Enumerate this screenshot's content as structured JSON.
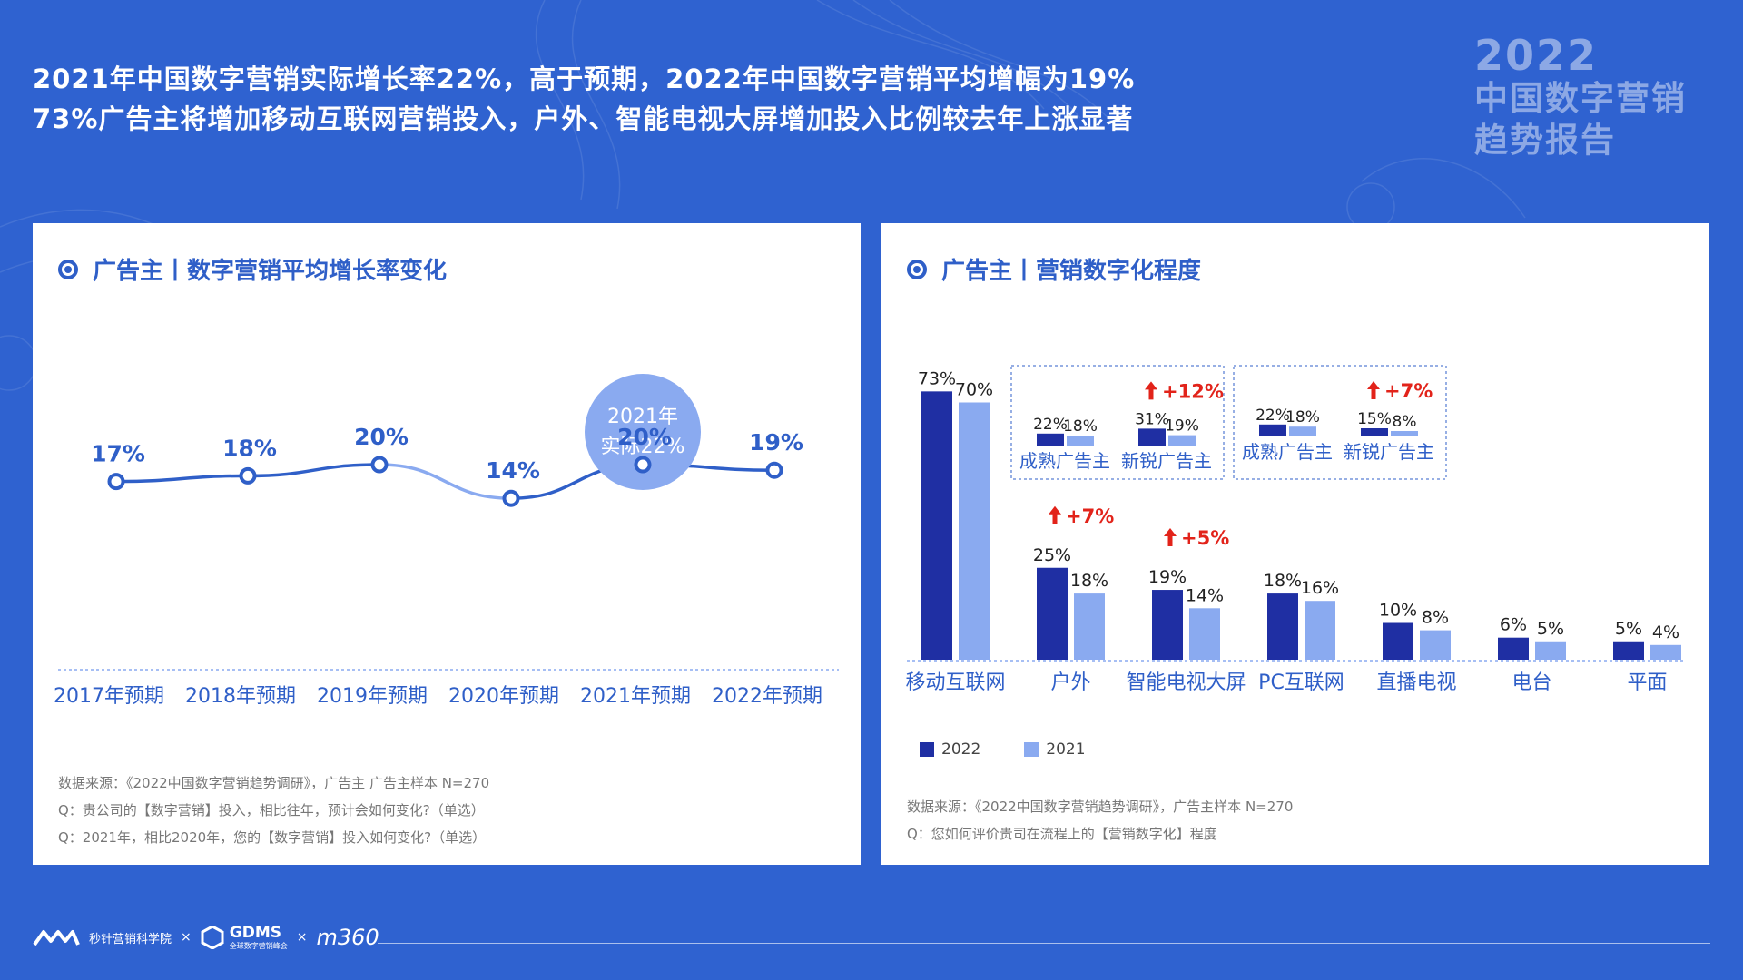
{
  "headline": {
    "line1": "2021年中国数字营销实际增长率22%，高于预期，2022年中国数字营销平均增幅为19%",
    "line2": "73%广告主将增加移动互联网营销投入，户外、智能电视大屏增加投入比例较去年上涨显著"
  },
  "brand": {
    "year": "2022",
    "title_line1": "中国数字营销",
    "title_line2": "趋势报告"
  },
  "left_card": {
    "title": "广告主丨数字营销平均增长率变化",
    "notes": [
      "数据来源：《2022中国数字营销趋势调研》，广告主 广告主样本 N=270",
      "Q：贵公司的【数字营销】投入，相比往年，预计会如何变化?（单选）",
      "Q：2021年，相比2020年，您的【数字营销】投入如何变化?（单选）"
    ]
  },
  "right_card": {
    "title": "广告主丨营销数字化程度",
    "legend": [
      {
        "label": "2022",
        "color": "#1f2fa3"
      },
      {
        "label": "2021",
        "color": "#8aaaf0"
      }
    ],
    "notes": [
      "数据来源：《2022中国数字营销趋势调研》，广告主样本 N=270",
      "Q：您如何评价贵司在流程上的【营销数字化】程度"
    ]
  },
  "chart_data": [
    {
      "type": "line",
      "title": "广告主丨数字营销平均增长率变化",
      "categories": [
        "2017年预期",
        "2018年预期",
        "2019年预期",
        "2020年预期",
        "2021年预期",
        "2022年预期"
      ],
      "values": [
        17,
        18,
        20,
        14,
        20,
        19
      ],
      "value_labels": [
        "17%",
        "18%",
        "20%",
        "14%",
        "20%",
        "19%"
      ],
      "ylim": [
        0,
        40
      ],
      "grid": false,
      "annotation": {
        "line1": "2021年",
        "line2": "实际22%",
        "category": "2021年预期"
      }
    },
    {
      "type": "bar",
      "title": "广告主丨营销数字化程度",
      "categories": [
        "移动互联网",
        "户外",
        "智能电视大屏",
        "PC互联网",
        "直播电视",
        "电台",
        "平面"
      ],
      "series": [
        {
          "name": "2022",
          "values": [
            73,
            25,
            19,
            18,
            10,
            6,
            5
          ],
          "labels": [
            "73%",
            "25%",
            "19%",
            "18%",
            "10%",
            "6%",
            "5%"
          ]
        },
        {
          "name": "2021",
          "values": [
            70,
            18,
            14,
            16,
            8,
            5,
            4
          ],
          "labels": [
            "70%",
            "18%",
            "14%",
            "16%",
            "8%",
            "5%",
            "4%"
          ]
        }
      ],
      "growth_annotations": [
        {
          "category": "户外",
          "text": "+7%"
        },
        {
          "category": "智能电视大屏",
          "text": "+5%"
        }
      ],
      "breakdowns": [
        {
          "category": "户外",
          "groups": [
            {
              "name": "成熟广告主",
              "values": [
                22,
                18
              ],
              "labels": [
                "22%",
                "18%"
              ]
            },
            {
              "name": "新锐广告主",
              "values": [
                31,
                19
              ],
              "labels": [
                "31%",
                "19%"
              ],
              "growth": "+12%"
            }
          ]
        },
        {
          "category": "智能电视大屏",
          "groups": [
            {
              "name": "成熟广告主",
              "values": [
                22,
                18
              ],
              "labels": [
                "22%",
                "18%"
              ]
            },
            {
              "name": "新锐广告主",
              "values": [
                15,
                8
              ],
              "labels": [
                "15%",
                "8%"
              ],
              "growth": "+7%"
            }
          ]
        }
      ],
      "ylim": [
        0,
        80
      ],
      "legend": "bottom-left",
      "grid": false
    }
  ],
  "colors": {
    "background": "#2f62d0",
    "line_dark": "#2f5fc8",
    "line_light": "#8aaaf0",
    "bar_2022": "#1f2fa3",
    "bar_2021": "#8aaaf0",
    "growth_red": "#e2231a"
  },
  "footer": {
    "partner1": "秒针营销科学院",
    "sep": "×",
    "partner2": "GDMS",
    "partner2_sub": "全球数字营销峰会",
    "partner3": "m360"
  }
}
